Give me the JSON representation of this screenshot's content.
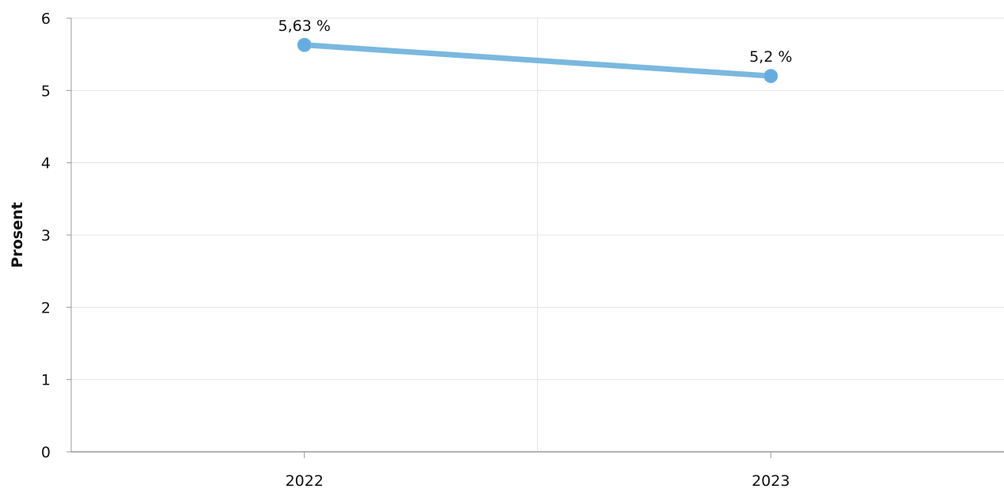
{
  "chart_data": {
    "type": "line",
    "categories": [
      "2022",
      "2023"
    ],
    "series": [
      {
        "values": [
          5.63,
          5.2
        ],
        "labels": [
          "5,63 %",
          "5,2 %"
        ],
        "color": "#7ab8df"
      }
    ],
    "xlabel": "",
    "ylabel": "Prosent",
    "ylim": [
      0,
      6
    ],
    "yticks": [
      0,
      1,
      2,
      3,
      4,
      5,
      6
    ],
    "grid": true,
    "legend": "none"
  }
}
